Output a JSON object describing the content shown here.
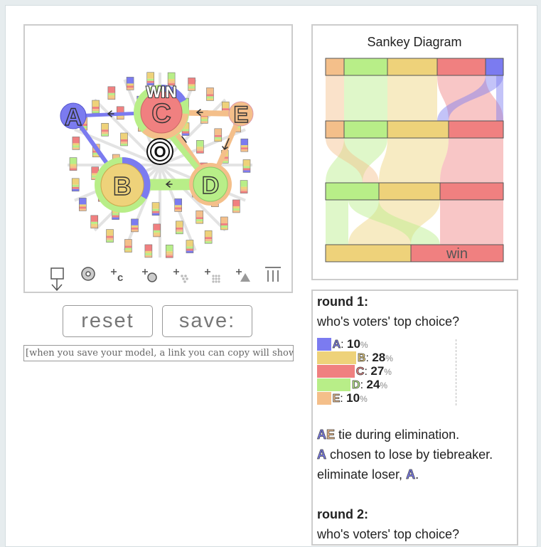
{
  "simulation": {
    "win_label": "WIN",
    "tiebreak_marker": "O",
    "candidates": [
      {
        "name": "A",
        "color": "#7b7bf0"
      },
      {
        "name": "B",
        "color": "#eed27a"
      },
      {
        "name": "C",
        "color": "#f08080"
      },
      {
        "name": "D",
        "color": "#b8ee88"
      },
      {
        "name": "E",
        "color": "#f4bf8a"
      }
    ]
  },
  "buttons": {
    "reset": "reset",
    "save": "save:"
  },
  "link_box": "[when you save your model, a link you can copy will show",
  "sankey": {
    "title": "Sankey Diagram",
    "win_label": "win"
  },
  "results": {
    "rounds": [
      {
        "heading": "round 1:",
        "question": "who's voters' top choice?",
        "unit": "%",
        "tallies": [
          10,
          28,
          27,
          24,
          10
        ],
        "events": [
          [
            {
              "candidate": "A"
            },
            {
              "candidate": "E"
            },
            {
              "text": " tie during elimination."
            }
          ],
          [
            {
              "candidate": "A"
            },
            {
              "text": " chosen to lose by tiebreaker."
            }
          ],
          [
            {
              "text": "eliminate loser, "
            },
            {
              "candidate": "A"
            },
            {
              "text": "."
            }
          ]
        ]
      },
      {
        "heading": "round 2:",
        "question": "who's voters' top choice?"
      }
    ]
  }
}
